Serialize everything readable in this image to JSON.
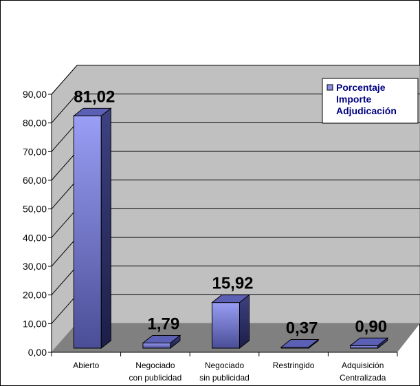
{
  "chart_data": {
    "type": "bar",
    "categories": [
      [
        "Abierto"
      ],
      [
        "Negociado",
        "con publicidad"
      ],
      [
        "Negociado",
        "sin publicidad"
      ],
      [
        "Restringido"
      ],
      [
        "Adquisición",
        "Centralizada"
      ]
    ],
    "series": [
      {
        "name": "Porcentaje Importe Adjudicación",
        "legend_lines": [
          "Porcentaje",
          "Importe",
          "Adjudicación"
        ],
        "values": [
          81.02,
          1.79,
          15.92,
          0.37,
          0.9
        ],
        "data_labels": [
          "81,02",
          "1,79",
          "15,92",
          "0,37",
          "0,90"
        ],
        "color": "#8b8fe8"
      }
    ],
    "y_ticks": [
      "0,00",
      "10,00",
      "20,00",
      "30,00",
      "40,00",
      "50,00",
      "60,00",
      "70,00",
      "80,00",
      "90,00"
    ],
    "ylim": [
      0,
      90
    ],
    "grid": true,
    "legend": "top-right",
    "title": "",
    "xlabel": "",
    "ylabel": ""
  }
}
